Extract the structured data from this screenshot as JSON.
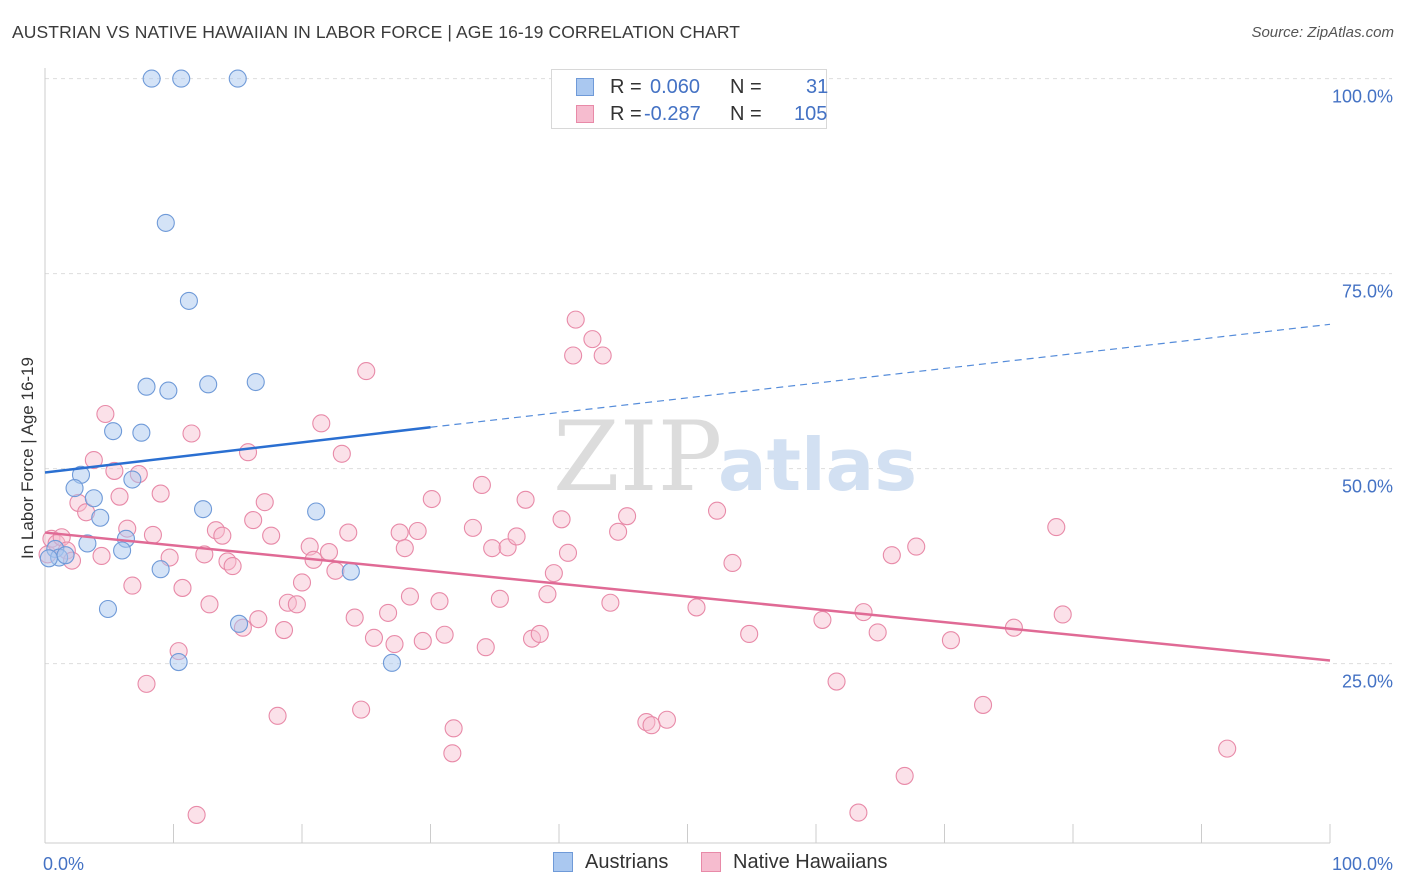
{
  "title": "AUSTRIAN VS NATIVE HAWAIIAN IN LABOR FORCE | AGE 16-19 CORRELATION CHART",
  "source": "Source: ZipAtlas.com",
  "watermark": {
    "zip": "ZIP",
    "atlas": "atlas"
  },
  "colors": {
    "blue_fill": "#aac8f0",
    "blue_stroke": "#6f9ad8",
    "blue_line": "#2a6fd1",
    "pink_fill": "#f6bccf",
    "pink_stroke": "#e88aa8",
    "pink_line": "#e06a95",
    "tick_text": "#4472c4",
    "grid": "#dddddd"
  },
  "legend": {
    "rows": [
      {
        "r_label": "R =",
        "r_value": "0.060",
        "n_label": "N =",
        "n_value": "31"
      },
      {
        "r_label": "R =",
        "r_value": "-0.287",
        "n_label": "N =",
        "n_value": "105"
      }
    ]
  },
  "bottom_legend": {
    "austrians": "Austrians",
    "native_hawaiians": "Native Hawaiians"
  },
  "chart_data": {
    "type": "scatter",
    "title": "AUSTRIAN VS NATIVE HAWAIIAN IN LABOR FORCE | AGE 16-19 CORRELATION CHART",
    "xlabel": "",
    "ylabel": "In Labor Force | Age 16-19",
    "xlim": [
      0,
      100
    ],
    "ylim": [
      2,
      102
    ],
    "x_tick_labels": [
      "0.0%",
      "100.0%"
    ],
    "y_ticks": [
      25,
      50,
      75,
      100
    ],
    "y_tick_labels": [
      "25.0%",
      "50.0%",
      "75.0%",
      "100.0%"
    ],
    "grid": true,
    "series": [
      {
        "name": "Austrians",
        "R": 0.06,
        "N": 31,
        "trend": {
          "x0": 0,
          "y0": 49.5,
          "x1": 30,
          "y1": 55.3,
          "dashed_to_x": 100,
          "dashed_to_y": 68.5
        },
        "points": [
          [
            8.3,
            100
          ],
          [
            10.6,
            100
          ],
          [
            15.0,
            100
          ],
          [
            9.4,
            81.5
          ],
          [
            11.2,
            71.5
          ],
          [
            7.9,
            60.5
          ],
          [
            9.6,
            60
          ],
          [
            12.7,
            60.8
          ],
          [
            16.4,
            61.1
          ],
          [
            5.3,
            54.8
          ],
          [
            7.5,
            54.6
          ],
          [
            2.8,
            49.2
          ],
          [
            6.8,
            48.6
          ],
          [
            2.3,
            47.5
          ],
          [
            3.8,
            46.2
          ],
          [
            12.3,
            44.8
          ],
          [
            21.1,
            44.5
          ],
          [
            4.3,
            43.7
          ],
          [
            6.3,
            41
          ],
          [
            3.3,
            40.4
          ],
          [
            0.8,
            39.7
          ],
          [
            6.0,
            39.5
          ],
          [
            1.1,
            38.6
          ],
          [
            1.6,
            38.9
          ],
          [
            9.0,
            37.1
          ],
          [
            23.8,
            36.8
          ],
          [
            4.9,
            32
          ],
          [
            15.1,
            30.1
          ],
          [
            10.4,
            25.2
          ],
          [
            27.0,
            25.1
          ],
          [
            0.3,
            38.5
          ]
        ]
      },
      {
        "name": "Native Hawaiians",
        "R": -0.287,
        "N": 105,
        "trend": {
          "x0": 0,
          "y0": 41.8,
          "x1": 100,
          "y1": 25.4
        },
        "points": [
          [
            0.2,
            39
          ],
          [
            0.5,
            41
          ],
          [
            0.9,
            40.4
          ],
          [
            1.3,
            41.2
          ],
          [
            1.7,
            39.5
          ],
          [
            2.1,
            38.2
          ],
          [
            2.6,
            45.6
          ],
          [
            3.2,
            44.4
          ],
          [
            3.8,
            51.1
          ],
          [
            4.4,
            38.8
          ],
          [
            4.7,
            57
          ],
          [
            5.4,
            49.7
          ],
          [
            5.8,
            46.4
          ],
          [
            6.4,
            42.3
          ],
          [
            6.8,
            35
          ],
          [
            7.3,
            49.3
          ],
          [
            7.9,
            22.4
          ],
          [
            8.4,
            41.5
          ],
          [
            9.0,
            46.8
          ],
          [
            9.7,
            38.6
          ],
          [
            10.4,
            26.6
          ],
          [
            10.7,
            34.7
          ],
          [
            11.4,
            54.5
          ],
          [
            11.8,
            5.6
          ],
          [
            12.4,
            39
          ],
          [
            12.8,
            32.6
          ],
          [
            13.3,
            42.1
          ],
          [
            13.8,
            41.4
          ],
          [
            14.2,
            38.1
          ],
          [
            14.6,
            37.5
          ],
          [
            15.4,
            29.6
          ],
          [
            15.8,
            52.1
          ],
          [
            16.2,
            43.4
          ],
          [
            16.6,
            30.7
          ],
          [
            17.1,
            45.7
          ],
          [
            17.6,
            41.4
          ],
          [
            18.1,
            18.3
          ],
          [
            18.6,
            29.3
          ],
          [
            18.9,
            32.8
          ],
          [
            19.6,
            32.6
          ],
          [
            20.0,
            35.4
          ],
          [
            20.6,
            40
          ],
          [
            20.9,
            38.3
          ],
          [
            21.5,
            55.8
          ],
          [
            22.1,
            39.3
          ],
          [
            22.6,
            36.9
          ],
          [
            23.1,
            51.9
          ],
          [
            23.6,
            41.8
          ],
          [
            24.1,
            30.9
          ],
          [
            24.6,
            19.1
          ],
          [
            25.0,
            62.5
          ],
          [
            25.6,
            28.3
          ],
          [
            26.7,
            31.5
          ],
          [
            27.2,
            27.5
          ],
          [
            27.6,
            41.8
          ],
          [
            28.0,
            39.8
          ],
          [
            28.4,
            33.6
          ],
          [
            29.0,
            42
          ],
          [
            29.4,
            27.9
          ],
          [
            30.1,
            46.1
          ],
          [
            30.7,
            33
          ],
          [
            31.1,
            28.7
          ],
          [
            31.8,
            16.7
          ],
          [
            31.7,
            13.5
          ],
          [
            33.3,
            42.4
          ],
          [
            34.0,
            47.9
          ],
          [
            34.3,
            27.1
          ],
          [
            34.8,
            39.8
          ],
          [
            35.4,
            33.3
          ],
          [
            36.0,
            39.9
          ],
          [
            36.7,
            41.3
          ],
          [
            37.4,
            46
          ],
          [
            37.9,
            28.2
          ],
          [
            38.5,
            28.8
          ],
          [
            39.1,
            33.9
          ],
          [
            39.6,
            36.6
          ],
          [
            40.2,
            43.5
          ],
          [
            40.7,
            39.2
          ],
          [
            41.3,
            69.1
          ],
          [
            41.1,
            64.5
          ],
          [
            42.6,
            66.6
          ],
          [
            43.4,
            64.5
          ],
          [
            44.0,
            32.8
          ],
          [
            44.6,
            41.9
          ],
          [
            45.3,
            43.9
          ],
          [
            46.8,
            17.5
          ],
          [
            48.4,
            17.8
          ],
          [
            50.7,
            32.2
          ],
          [
            52.3,
            44.6
          ],
          [
            53.5,
            37.9
          ],
          [
            54.8,
            28.8
          ],
          [
            60.5,
            30.6
          ],
          [
            61.6,
            22.7
          ],
          [
            63.7,
            31.6
          ],
          [
            64.8,
            29
          ],
          [
            65.9,
            38.9
          ],
          [
            66.9,
            10.6
          ],
          [
            67.8,
            40
          ],
          [
            70.5,
            28
          ],
          [
            73.0,
            19.7
          ],
          [
            75.4,
            29.6
          ],
          [
            78.7,
            42.5
          ],
          [
            79.2,
            31.3
          ],
          [
            92.0,
            14.1
          ],
          [
            63.3,
            5.9
          ],
          [
            47.2,
            17.1
          ]
        ]
      }
    ]
  }
}
